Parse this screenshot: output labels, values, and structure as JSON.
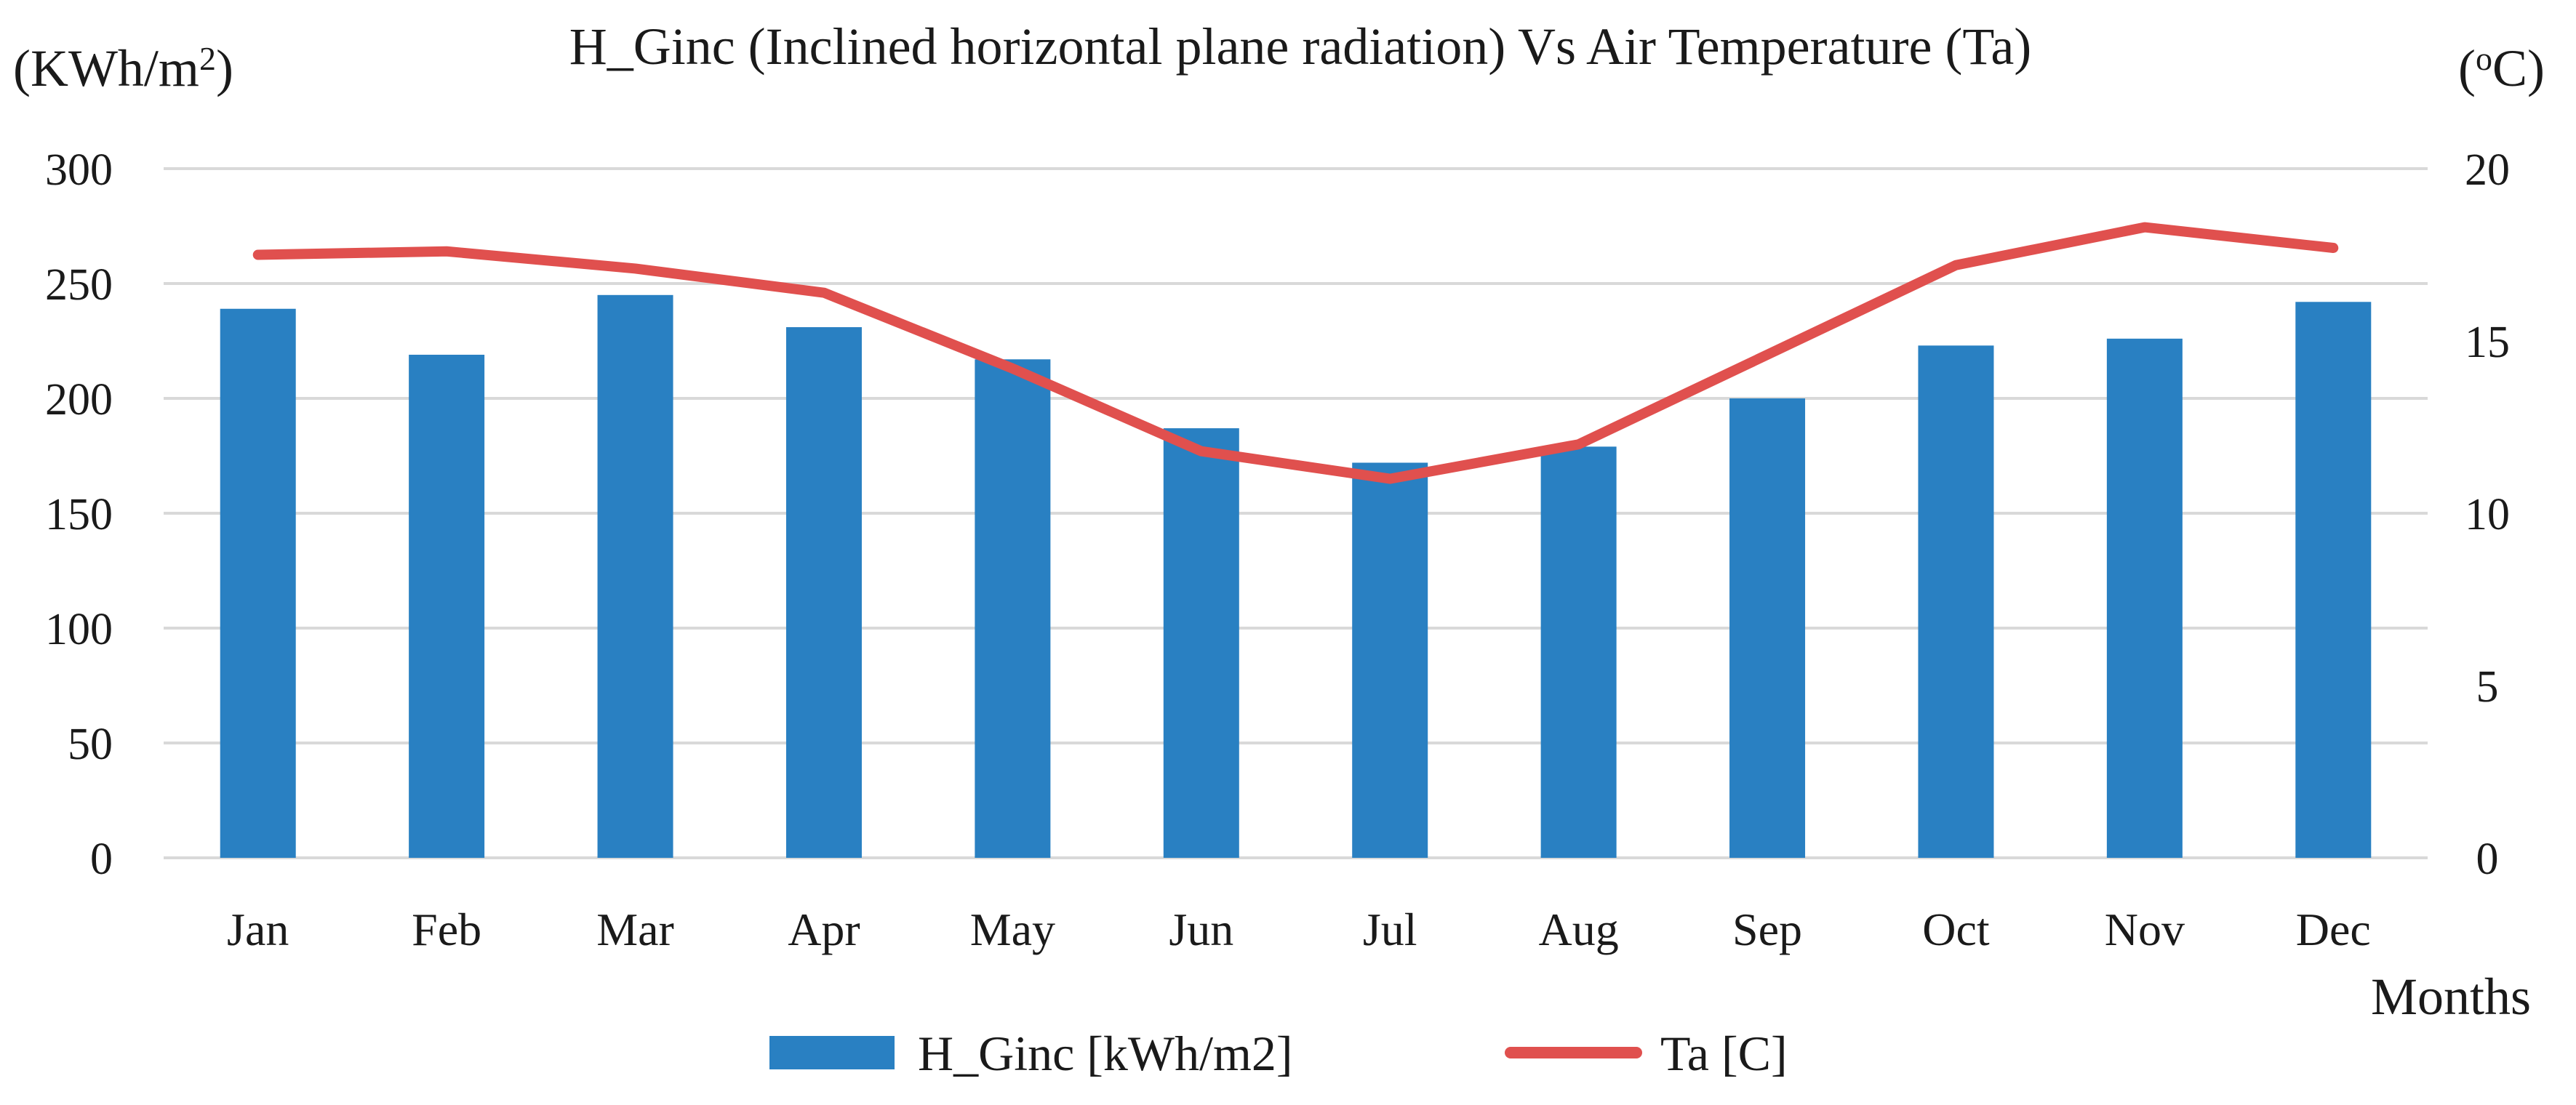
{
  "chart_data": {
    "type": "bar",
    "title": "H_Ginc (Inclined horizontal plane radiation)  Vs Air Temperature (Ta)",
    "xlabel": "Months",
    "ylabel_left": "(KWh/m2)",
    "ylabel_right": "(ºC)",
    "categories": [
      "Jan",
      "Feb",
      "Mar",
      "Apr",
      "May",
      "Jun",
      "Jul",
      "Aug",
      "Sep",
      "Oct",
      "Nov",
      "Dec"
    ],
    "ylim_left": [
      0,
      300
    ],
    "yticks_left": [
      0,
      50,
      100,
      150,
      200,
      250,
      300
    ],
    "ylim_right": [
      0,
      20
    ],
    "yticks_right": [
      0,
      5,
      10,
      15,
      20
    ],
    "grid": true,
    "legend_position": "bottom",
    "series": [
      {
        "name": "H_Ginc [kWh/m2]",
        "kind": "bar",
        "axis": "left",
        "color": "#2980c2",
        "values": [
          239,
          219,
          245,
          231,
          217,
          187,
          172,
          179,
          200,
          223,
          226,
          242
        ]
      },
      {
        "name": "Ta [C]",
        "kind": "line",
        "axis": "right",
        "color": "#e0504e",
        "values": [
          17.5,
          17.6,
          17.1,
          16.4,
          14.2,
          11.8,
          11.0,
          12.0,
          14.6,
          17.2,
          18.3,
          17.7
        ]
      }
    ]
  }
}
